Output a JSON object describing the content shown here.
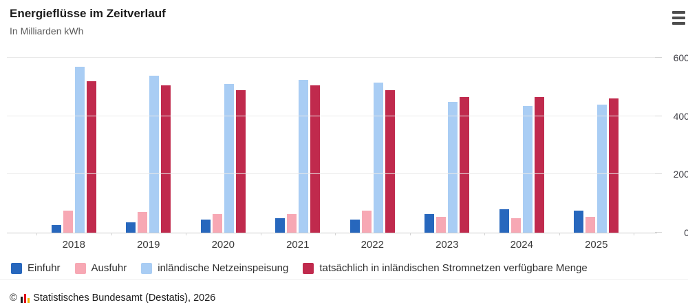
{
  "header": {
    "title": "Energieflüsse im Zeitverlauf",
    "subtitle": "In Milliarden kWh"
  },
  "menu": {
    "icon": "hamburger-menu-icon"
  },
  "chart_data": {
    "type": "bar",
    "title": "Energieflüsse im Zeitverlauf",
    "ylabel": "In Milliarden kWh",
    "categories": [
      "2018",
      "2019",
      "2020",
      "2021",
      "2022",
      "2023",
      "2024",
      "2025"
    ],
    "series": [
      {
        "name": "Einfuhr",
        "color": "#2767bd",
        "values": [
          25,
          35,
          45,
          50,
          45,
          65,
          80,
          75
        ]
      },
      {
        "name": "Ausfuhr",
        "color": "#f7a8b4",
        "values": [
          75,
          70,
          65,
          65,
          75,
          55,
          50,
          55
        ]
      },
      {
        "name": "inländische Netzeinspeisung",
        "color": "#a9cdf4",
        "values": [
          570,
          540,
          510,
          525,
          515,
          450,
          435,
          440
        ]
      },
      {
        "name": "tatsächlich in inländischen Stromnetzen verfügbare Menge",
        "color": "#c02a4d",
        "values": [
          520,
          505,
          490,
          505,
          490,
          465,
          465,
          460
        ]
      }
    ],
    "y_axis": {
      "ticks": [
        0,
        200,
        400,
        600
      ],
      "max": 657
    },
    "grid": true,
    "legend_position": "bottom"
  },
  "footer": {
    "copyright": "©",
    "source": "Statistisches Bundesamt (Destatis), 2026",
    "logo_bar_colors": [
      "#1a1a1a",
      "#e10019",
      "#f0b400"
    ]
  }
}
